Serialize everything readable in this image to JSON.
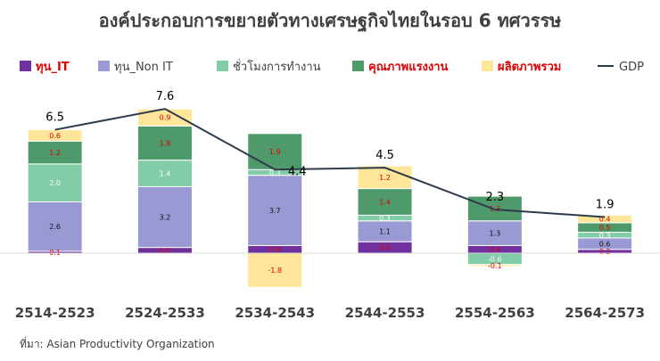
{
  "chart_data": {
    "type": "bar",
    "title": "องค์ประกอบการขยายตัวทางเศรษฐกิจไทยในรอบ 6 ทศวรรษ",
    "categories": [
      "2514-2523",
      "2524-2533",
      "2534-2543",
      "2544-2553",
      "2554-2563",
      "2564-2573"
    ],
    "series": [
      {
        "name": "ทุน_IT",
        "color": "#7030A0",
        "label_color": "#E00000",
        "values": [
          0.1,
          0.3,
          0.4,
          0.6,
          0.4,
          0.2
        ]
      },
      {
        "name": "ทุน_Non IT",
        "color": "#9999D4",
        "label_color": "#111111",
        "values": [
          2.6,
          3.2,
          3.7,
          1.1,
          1.3,
          0.6
        ]
      },
      {
        "name": "ชั่วโมงการทำงาน",
        "color": "#82CCA8",
        "label_color": "#ffffff",
        "values": [
          2.0,
          1.4,
          0.3,
          0.3,
          -0.6,
          0.3
        ]
      },
      {
        "name": "คุณภาพแรงงาน",
        "color": "#4E9A6A",
        "label_color": "#E00000",
        "values": [
          1.2,
          1.8,
          1.9,
          1.4,
          1.3,
          0.5
        ]
      },
      {
        "name": "ผลิตภาพรวม",
        "color": "#FFE699",
        "label_color": "#E00000",
        "values": [
          0.6,
          0.9,
          -1.8,
          1.2,
          -0.1,
          0.4
        ]
      }
    ],
    "line": {
      "name": "GDP",
      "color": "#2E3B4E",
      "values": [
        6.5,
        7.6,
        4.4,
        4.5,
        2.3,
        1.9
      ]
    },
    "legend_position": "top",
    "grid": false
  },
  "source_note": "ที่มา: Asian Productivity Organization"
}
